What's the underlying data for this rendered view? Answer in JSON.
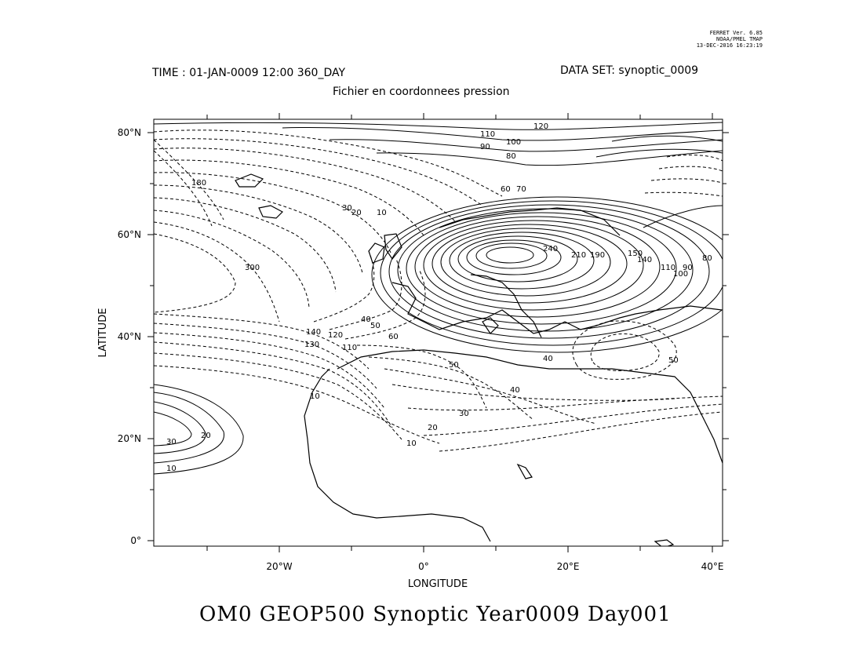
{
  "credits": {
    "line1": "FERRET Ver. 6.85",
    "line2": "NOAA/PMEL TMAP",
    "line3": "13-DEC-2016 16:23:19"
  },
  "header": {
    "time": "TIME : 01-JAN-0009 12:00 360_DAY",
    "dataset": "DATA SET: synoptic_0009",
    "subtitle": "Fichier en coordonnees pression"
  },
  "map": {
    "x_label": "LONGITUDE",
    "y_label": "LATITUDE",
    "lon_ticks": [
      "20°W",
      "0°",
      "20°E",
      "40°E"
    ],
    "lat_ticks": [
      "80°N",
      "60°N",
      "40°N",
      "20°N",
      "0°"
    ],
    "contour_labels": [
      "120",
      "110",
      "100",
      "90",
      "80",
      "70",
      "60",
      "180",
      "300",
      "140",
      "130",
      "120",
      "110",
      "50",
      "40",
      "30",
      "20",
      "10",
      "30",
      "20",
      "10",
      "240",
      "210",
      "190",
      "150",
      "140",
      "110",
      "100",
      "90",
      "80",
      "10",
      "40",
      "50",
      "60",
      "50",
      "40",
      "30",
      "20",
      "10"
    ]
  },
  "footer": {
    "title": "OM0 GEOP500 Synoptic Year0009 Day001"
  }
}
